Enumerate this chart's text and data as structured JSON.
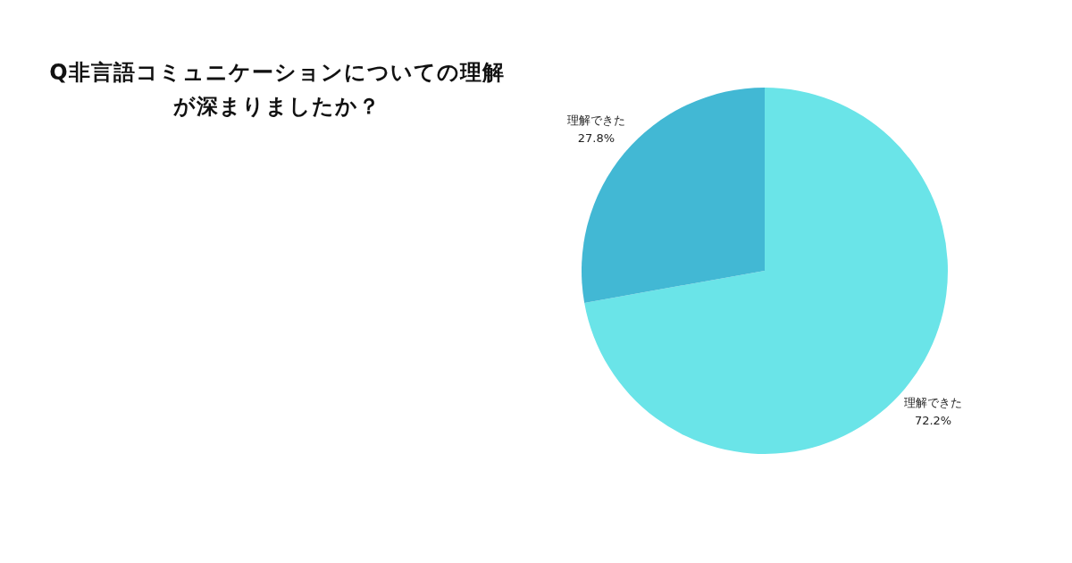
{
  "chart_data": {
    "type": "pie",
    "title": "Q非言語コミュニケーションについての理解が深まりましたか？",
    "categories": [
      "理解できた",
      "理解できた"
    ],
    "values": [
      72.2,
      27.8
    ],
    "colors": [
      "#6ae4e8",
      "#42b8d4"
    ],
    "value_labels": [
      "72.2%",
      "27.8%"
    ]
  }
}
